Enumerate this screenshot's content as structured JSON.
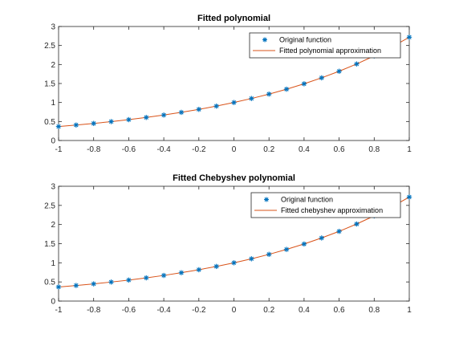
{
  "colors": {
    "marker": "#0072BD",
    "fit_line": "#D95319",
    "axis": "#262626",
    "background": "#FFFFFF"
  },
  "chart_data": [
    {
      "type": "line",
      "title": "Fitted polynomial",
      "xlabel": "",
      "ylabel": "",
      "xlim": [
        -1,
        1
      ],
      "ylim": [
        0,
        3
      ],
      "xticks": [
        -1,
        -0.8,
        -0.6,
        -0.4,
        -0.2,
        0,
        0.2,
        0.4,
        0.6,
        0.8,
        1
      ],
      "xtick_labels": [
        "-1",
        "-0.8",
        "-0.6",
        "-0.4",
        "-0.2",
        "0",
        "0.2",
        "0.4",
        "0.6",
        "0.8",
        "1"
      ],
      "yticks": [
        0,
        0.5,
        1,
        1.5,
        2,
        2.5,
        3
      ],
      "ytick_labels": [
        "0",
        "0.5",
        "1",
        "1.5",
        "2",
        "2.5",
        "3"
      ],
      "grid": false,
      "legend_position": "top-right",
      "series": [
        {
          "name": "Original function",
          "style": "markers",
          "marker": "asterisk",
          "x": [
            -1,
            -0.9,
            -0.8,
            -0.7,
            -0.6,
            -0.5,
            -0.4,
            -0.3,
            -0.2,
            -0.1,
            0,
            0.1,
            0.2,
            0.3,
            0.4,
            0.5,
            0.6,
            0.7,
            0.8,
            0.9,
            1
          ],
          "y": [
            0.368,
            0.407,
            0.449,
            0.497,
            0.549,
            0.607,
            0.67,
            0.741,
            0.819,
            0.905,
            1.0,
            1.105,
            1.221,
            1.35,
            1.492,
            1.649,
            1.822,
            2.014,
            2.226,
            2.46,
            2.718
          ]
        },
        {
          "name": "Fitted polynomial approximation",
          "style": "line",
          "x": [
            -1,
            -0.9,
            -0.8,
            -0.7,
            -0.6,
            -0.5,
            -0.4,
            -0.3,
            -0.2,
            -0.1,
            0,
            0.1,
            0.2,
            0.3,
            0.4,
            0.5,
            0.6,
            0.7,
            0.8,
            0.9,
            1
          ],
          "y": [
            0.368,
            0.407,
            0.449,
            0.497,
            0.549,
            0.607,
            0.67,
            0.741,
            0.819,
            0.905,
            1.0,
            1.105,
            1.221,
            1.35,
            1.492,
            1.649,
            1.822,
            2.014,
            2.226,
            2.46,
            2.718
          ]
        }
      ]
    },
    {
      "type": "line",
      "title": "Fitted Chebyshev polynomial",
      "xlabel": "",
      "ylabel": "",
      "xlim": [
        -1,
        1
      ],
      "ylim": [
        0,
        3
      ],
      "xticks": [
        -1,
        -0.8,
        -0.6,
        -0.4,
        -0.2,
        0,
        0.2,
        0.4,
        0.6,
        0.8,
        1
      ],
      "xtick_labels": [
        "-1",
        "-0.8",
        "-0.6",
        "-0.4",
        "-0.2",
        "0",
        "0.2",
        "0.4",
        "0.6",
        "0.8",
        "1"
      ],
      "yticks": [
        0,
        0.5,
        1,
        1.5,
        2,
        2.5,
        3
      ],
      "ytick_labels": [
        "0",
        "0.5",
        "1",
        "1.5",
        "2",
        "2.5",
        "3"
      ],
      "grid": false,
      "legend_position": "top-right",
      "series": [
        {
          "name": "Original function",
          "style": "markers",
          "marker": "asterisk",
          "x": [
            -1,
            -0.9,
            -0.8,
            -0.7,
            -0.6,
            -0.5,
            -0.4,
            -0.3,
            -0.2,
            -0.1,
            0,
            0.1,
            0.2,
            0.3,
            0.4,
            0.5,
            0.6,
            0.7,
            0.8,
            0.9,
            1
          ],
          "y": [
            0.368,
            0.407,
            0.449,
            0.497,
            0.549,
            0.607,
            0.67,
            0.741,
            0.819,
            0.905,
            1.0,
            1.105,
            1.221,
            1.35,
            1.492,
            1.649,
            1.822,
            2.014,
            2.226,
            2.46,
            2.718
          ]
        },
        {
          "name": "Fitted chebyshev approximation",
          "style": "line",
          "x": [
            -1,
            -0.9,
            -0.8,
            -0.7,
            -0.6,
            -0.5,
            -0.4,
            -0.3,
            -0.2,
            -0.1,
            0,
            0.1,
            0.2,
            0.3,
            0.4,
            0.5,
            0.6,
            0.7,
            0.8,
            0.9,
            1
          ],
          "y": [
            0.368,
            0.407,
            0.449,
            0.497,
            0.549,
            0.607,
            0.67,
            0.741,
            0.819,
            0.905,
            1.0,
            1.105,
            1.221,
            1.35,
            1.492,
            1.649,
            1.822,
            2.014,
            2.226,
            2.46,
            2.718
          ]
        }
      ]
    }
  ]
}
